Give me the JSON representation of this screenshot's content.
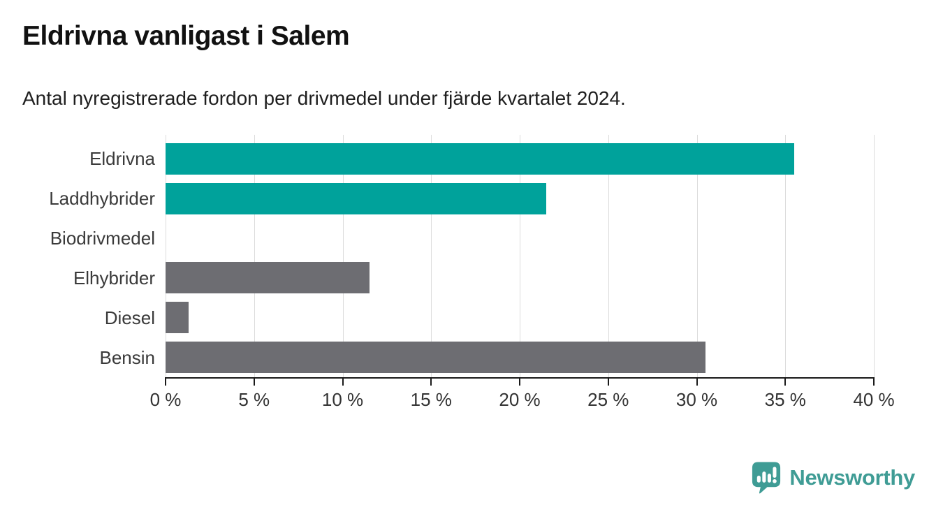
{
  "header": {
    "title": "Eldrivna vanligast i Salem",
    "subtitle": "Antal nyregistrerade fordon per drivmedel under fjärde kvartalet 2024."
  },
  "chart_data": {
    "type": "bar",
    "orientation": "horizontal",
    "title": "Eldrivna vanligast i Salem",
    "subtitle": "Antal nyregistrerade fordon per drivmedel under fjärde kvartalet 2024.",
    "categories": [
      "Eldrivna",
      "Laddhybrider",
      "Biodrivmedel",
      "Elhybrider",
      "Diesel",
      "Bensin"
    ],
    "values": [
      35.5,
      21.5,
      0,
      11.5,
      1.3,
      30.5
    ],
    "unit": "%",
    "bar_colors": [
      "#00a29b",
      "#00a29b",
      "#6d6d72",
      "#6d6d72",
      "#6d6d72",
      "#6d6d72"
    ],
    "xlim": [
      0,
      40
    ],
    "x_ticks": [
      0,
      5,
      10,
      15,
      20,
      25,
      30,
      35,
      40
    ],
    "x_tick_labels": [
      "0 %",
      "5 %",
      "10 %",
      "15 %",
      "20 %",
      "25 %",
      "30 %",
      "35 %",
      "40 %"
    ],
    "xlabel": "",
    "ylabel": "",
    "grid": "vertical-only",
    "legend": "none"
  },
  "colors": {
    "accent_teal": "#00a29b",
    "neutral_gray": "#6d6d72",
    "gridline": "#dcdcdc",
    "axis": "#1a1a1a",
    "text": "#333333",
    "brand_teal": "#3f9c95"
  },
  "footer": {
    "brand": "Newsworthy"
  }
}
